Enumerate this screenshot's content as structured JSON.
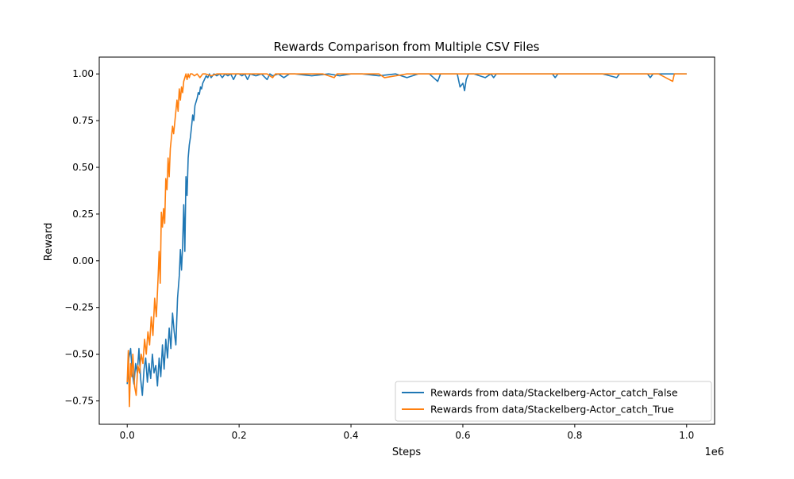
{
  "chart_data": {
    "type": "line",
    "title": "Rewards Comparison from Multiple CSV Files",
    "xlabel": "Steps",
    "ylabel": "Reward",
    "x_offset_label": "1e6",
    "xlim": [
      -50000,
      1050000
    ],
    "ylim": [
      -0.875,
      1.09
    ],
    "x_ticks": [
      0,
      200000,
      400000,
      600000,
      800000,
      1000000
    ],
    "x_tick_labels": [
      "0.0",
      "0.2",
      "0.4",
      "0.6",
      "0.8",
      "1.0"
    ],
    "y_ticks": [
      -0.75,
      -0.5,
      -0.25,
      0.0,
      0.25,
      0.5,
      0.75,
      1.0
    ],
    "y_tick_labels": [
      "−0.75",
      "−0.50",
      "−0.25",
      "0.00",
      "0.25",
      "0.50",
      "0.75",
      "1.00"
    ],
    "grid": false,
    "legend_position": "lower-right",
    "series": [
      {
        "name": "Rewards from data/Stackelberg-Actor_catch_False",
        "color": "#1f77b4",
        "x": [
          0,
          3000,
          6000,
          9000,
          12000,
          15000,
          18000,
          21000,
          24000,
          27000,
          30000,
          33000,
          36000,
          39000,
          42000,
          45000,
          48000,
          51000,
          54000,
          57000,
          60000,
          63000,
          66000,
          69000,
          72000,
          75000,
          78000,
          81000,
          84000,
          87000,
          90000,
          93000,
          95000,
          97000,
          99000,
          101000,
          103000,
          105000,
          107000,
          109000,
          111000,
          113000,
          115000,
          117000,
          119000,
          121000,
          123000,
          125000,
          127000,
          129000,
          131000,
          133000,
          135000,
          138000,
          141000,
          144000,
          147000,
          150000,
          155000,
          160000,
          165000,
          170000,
          175000,
          180000,
          185000,
          190000,
          195000,
          200000,
          205000,
          210000,
          215000,
          220000,
          230000,
          240000,
          250000,
          255000,
          260000,
          270000,
          280000,
          290000,
          300000,
          330000,
          360000,
          380000,
          400000,
          420000,
          450000,
          480000,
          500000,
          520000,
          540000,
          555000,
          560000,
          570000,
          590000,
          595000,
          600000,
          603000,
          606000,
          610000,
          620000,
          640000,
          650000,
          655000,
          660000,
          700000,
          760000,
          765000,
          770000,
          800000,
          850000,
          875000,
          880000,
          900000,
          930000,
          935000,
          940000,
          970000,
          1000000
        ],
        "y": [
          -0.66,
          -0.52,
          -0.47,
          -0.6,
          -0.66,
          -0.55,
          -0.6,
          -0.47,
          -0.63,
          -0.72,
          -0.58,
          -0.52,
          -0.65,
          -0.55,
          -0.63,
          -0.5,
          -0.6,
          -0.56,
          -0.67,
          -0.52,
          -0.62,
          -0.45,
          -0.58,
          -0.42,
          -0.52,
          -0.36,
          -0.47,
          -0.28,
          -0.38,
          -0.45,
          -0.2,
          -0.08,
          0.06,
          -0.05,
          0.08,
          0.3,
          0.05,
          0.45,
          0.35,
          0.55,
          0.62,
          0.66,
          0.72,
          0.78,
          0.75,
          0.83,
          0.85,
          0.87,
          0.9,
          0.89,
          0.93,
          0.92,
          0.95,
          0.97,
          0.99,
          0.98,
          1.0,
          0.98,
          1.0,
          0.99,
          1.0,
          0.98,
          1.0,
          0.99,
          1.0,
          0.97,
          1.0,
          1.0,
          0.99,
          1.0,
          0.97,
          1.0,
          0.99,
          1.0,
          0.97,
          1.0,
          0.99,
          1.0,
          0.98,
          1.0,
          1.0,
          0.99,
          1.0,
          0.99,
          1.0,
          1.0,
          0.99,
          1.0,
          0.98,
          1.0,
          1.0,
          0.96,
          1.0,
          1.0,
          1.0,
          0.93,
          0.95,
          0.91,
          0.97,
          1.0,
          1.0,
          0.98,
          1.0,
          0.98,
          1.0,
          1.0,
          1.0,
          0.98,
          1.0,
          1.0,
          1.0,
          0.98,
          1.0,
          1.0,
          1.0,
          0.98,
          1.0,
          1.0,
          1.0
        ]
      },
      {
        "name": "Rewards from data/Stackelberg-Actor_catch_True",
        "color": "#ff7f0e",
        "x": [
          0,
          2000,
          4000,
          6000,
          8000,
          10000,
          13000,
          16000,
          19000,
          22000,
          25000,
          28000,
          31000,
          34000,
          37000,
          40000,
          43000,
          46000,
          49000,
          52000,
          55000,
          57000,
          59000,
          61000,
          63000,
          65000,
          67000,
          69000,
          71000,
          73000,
          75000,
          77000,
          79000,
          81000,
          83000,
          85000,
          87000,
          89000,
          91000,
          93000,
          95000,
          97000,
          99000,
          101000,
          103000,
          105000,
          107000,
          109000,
          111000,
          113000,
          116000,
          120000,
          125000,
          130000,
          135000,
          140000,
          150000,
          160000,
          170000,
          180000,
          200000,
          250000,
          260000,
          265000,
          300000,
          350000,
          370000,
          375000,
          400000,
          450000,
          460000,
          500000,
          550000,
          600000,
          650000,
          700000,
          800000,
          850000,
          900000,
          950000,
          975000,
          978000,
          981000,
          1000000
        ],
        "y": [
          -0.65,
          -0.48,
          -0.78,
          -0.55,
          -0.62,
          -0.5,
          -0.67,
          -0.72,
          -0.56,
          -0.6,
          -0.5,
          -0.55,
          -0.42,
          -0.5,
          -0.38,
          -0.45,
          -0.3,
          -0.4,
          -0.2,
          -0.3,
          -0.1,
          0.05,
          -0.12,
          0.26,
          0.18,
          0.28,
          0.2,
          0.44,
          0.38,
          0.55,
          0.45,
          0.6,
          0.66,
          0.72,
          0.68,
          0.74,
          0.8,
          0.86,
          0.8,
          0.92,
          0.86,
          0.93,
          0.9,
          0.96,
          0.98,
          1.0,
          0.97,
          1.0,
          0.98,
          1.0,
          1.0,
          0.99,
          1.0,
          0.98,
          1.0,
          1.0,
          0.99,
          1.0,
          1.0,
          1.0,
          1.0,
          1.0,
          0.98,
          1.0,
          1.0,
          1.0,
          0.98,
          1.0,
          1.0,
          1.0,
          0.98,
          1.0,
          1.0,
          1.0,
          1.0,
          1.0,
          1.0,
          1.0,
          1.0,
          1.0,
          0.96,
          1.0,
          1.0,
          1.0
        ]
      }
    ]
  }
}
